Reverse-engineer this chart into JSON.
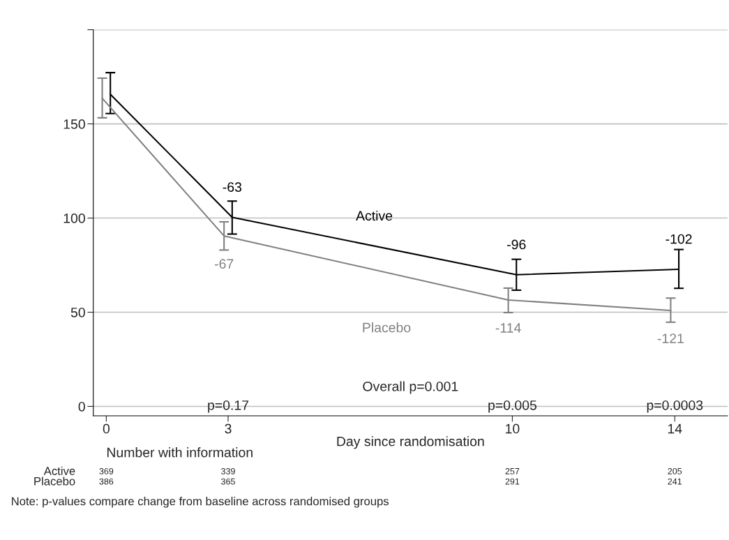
{
  "chart_data": {
    "type": "line",
    "xlabel": "Day since randomisation",
    "xlim": [
      -0.32,
      15.3
    ],
    "xticks": [
      0,
      3,
      10,
      14
    ],
    "ylim": [
      -5,
      200
    ],
    "yticks": [
      0,
      50,
      100,
      150,
      {
        "value": 200,
        "label": null
      }
    ],
    "grid": "y",
    "legend": false,
    "marker": "none",
    "line_style": "solid",
    "series": [
      {
        "name": "Active",
        "color": "#000000",
        "x": [
          0.1,
          3.1,
          10.1,
          14.1
        ],
        "values": [
          165.7,
          100.4,
          69.9,
          72.8
        ],
        "errors": [
          [
            155.5,
            177.2
          ],
          [
            91.5,
            109
          ],
          [
            61.7,
            78.1
          ],
          [
            62.7,
            83.3
          ]
        ]
      },
      {
        "name": "Placebo",
        "color": "#808080",
        "x": [
          -0.1,
          2.9,
          9.9,
          13.9
        ],
        "values": [
          163.6,
          90.5,
          56.5,
          50.9
        ],
        "errors": [
          [
            153.2,
            174.3
          ],
          [
            83,
            98
          ],
          [
            49.8,
            62.8
          ],
          [
            44.7,
            57.5
          ]
        ]
      }
    ],
    "annotations": [
      {
        "text": "-63",
        "x": 3.1,
        "y": 100.4
      },
      {
        "text": "-67",
        "x": 2.9,
        "y": 90.5
      },
      {
        "text": "-96",
        "x": 10.1,
        "y": 69.9
      },
      {
        "text": "-102",
        "x": 14.1,
        "y": 72.8
      },
      {
        "text": "-114",
        "x": 9.9,
        "y": 56.5
      },
      {
        "text": "-121",
        "x": 13.9,
        "y": 50.9
      },
      "Overall p=0.001",
      "p=0.17",
      "p=0.005",
      "p=0.0003",
      "Number with information",
      "Active",
      "369",
      "339",
      "257",
      "205",
      "Placebo",
      "386",
      "365",
      "291",
      "241",
      "Note: p-values compare change from baseline across randomised groups"
    ]
  }
}
